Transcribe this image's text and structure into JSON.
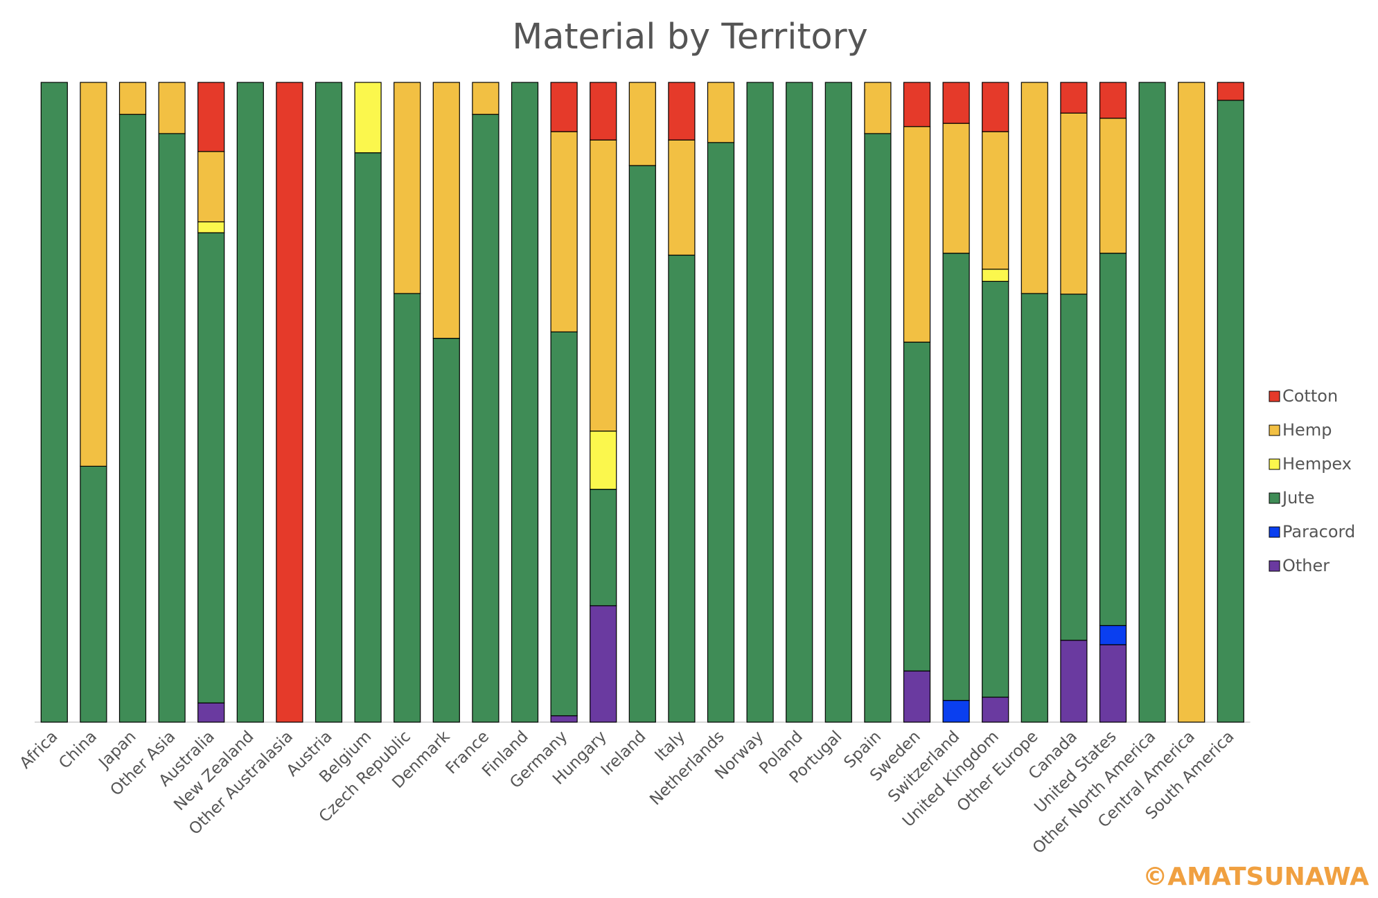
{
  "chart_data": {
    "type": "stacked-bar-100",
    "title": "Material by Territory",
    "watermark": "©AMATSUNAWA",
    "categories": [
      "Africa",
      "China",
      "Japan",
      "Other Asia",
      "Australia",
      "New Zealand",
      "Other Australasia",
      "Austria",
      "Belgium",
      "Czech Republic",
      "Denmark",
      "France",
      "Finland",
      "Germany",
      "Hungary",
      "Ireland",
      "Italy",
      "Netherlands",
      "Norway",
      "Poland",
      "Portugal",
      "Spain",
      "Sweden",
      "Switzerland",
      "United Kingdom",
      "Other Europe",
      "Canada",
      "United States",
      "Other North America",
      "Central America",
      "South America"
    ],
    "series": [
      {
        "name": "Cotton",
        "color": "#e53a2a",
        "values": [
          0,
          0,
          0,
          0,
          10.8,
          0,
          100,
          0,
          0,
          0,
          0,
          0,
          0,
          7.7,
          9,
          0,
          9,
          0,
          0,
          0,
          0,
          0,
          6.9,
          6.4,
          7.7,
          0,
          4.8,
          5.6,
          0,
          0,
          2.8
        ]
      },
      {
        "name": "Hemp",
        "color": "#f2c043",
        "values": [
          0,
          60,
          5,
          8,
          11,
          0,
          0,
          0,
          0,
          33,
          40,
          5,
          0,
          31.3,
          45.5,
          13,
          18,
          9.4,
          0,
          0,
          0,
          8,
          33.7,
          20.3,
          21.5,
          33,
          28.3,
          21.1,
          0,
          100,
          0
        ]
      },
      {
        "name": "Hempex",
        "color": "#fbf74d",
        "values": [
          0,
          0,
          0,
          0,
          1.7,
          0,
          0,
          0,
          11,
          0,
          0,
          0,
          0,
          0,
          9.1,
          0,
          0,
          0,
          0,
          0,
          0,
          0,
          0,
          0,
          1.9,
          0,
          0,
          0,
          0,
          0,
          0
        ]
      },
      {
        "name": "Jute",
        "color": "#3f8c56",
        "values": [
          100,
          40,
          95,
          92,
          73.5,
          100,
          0,
          100,
          89,
          67,
          60,
          95,
          100,
          60,
          18.2,
          87,
          73,
          90.6,
          100,
          100,
          100,
          92,
          51.4,
          69.9,
          65,
          67,
          54.1,
          58.2,
          100,
          0,
          97.2
        ]
      },
      {
        "name": "Paracord",
        "color": "#0a3ff0",
        "values": [
          0,
          0,
          0,
          0,
          0,
          0,
          0,
          0,
          0,
          0,
          0,
          0,
          0,
          0,
          0,
          0,
          0,
          0,
          0,
          0,
          0,
          0,
          0,
          3.4,
          0,
          0,
          0,
          3,
          0,
          0,
          0
        ]
      },
      {
        "name": "Other",
        "color": "#6a3aa0",
        "values": [
          0,
          0,
          0,
          0,
          3,
          0,
          0,
          0,
          0,
          0,
          0,
          0,
          0,
          1,
          18.2,
          0,
          0,
          0,
          0,
          0,
          0,
          0,
          8,
          0,
          3.9,
          0,
          12.8,
          12.1,
          0,
          0,
          0
        ]
      }
    ]
  }
}
